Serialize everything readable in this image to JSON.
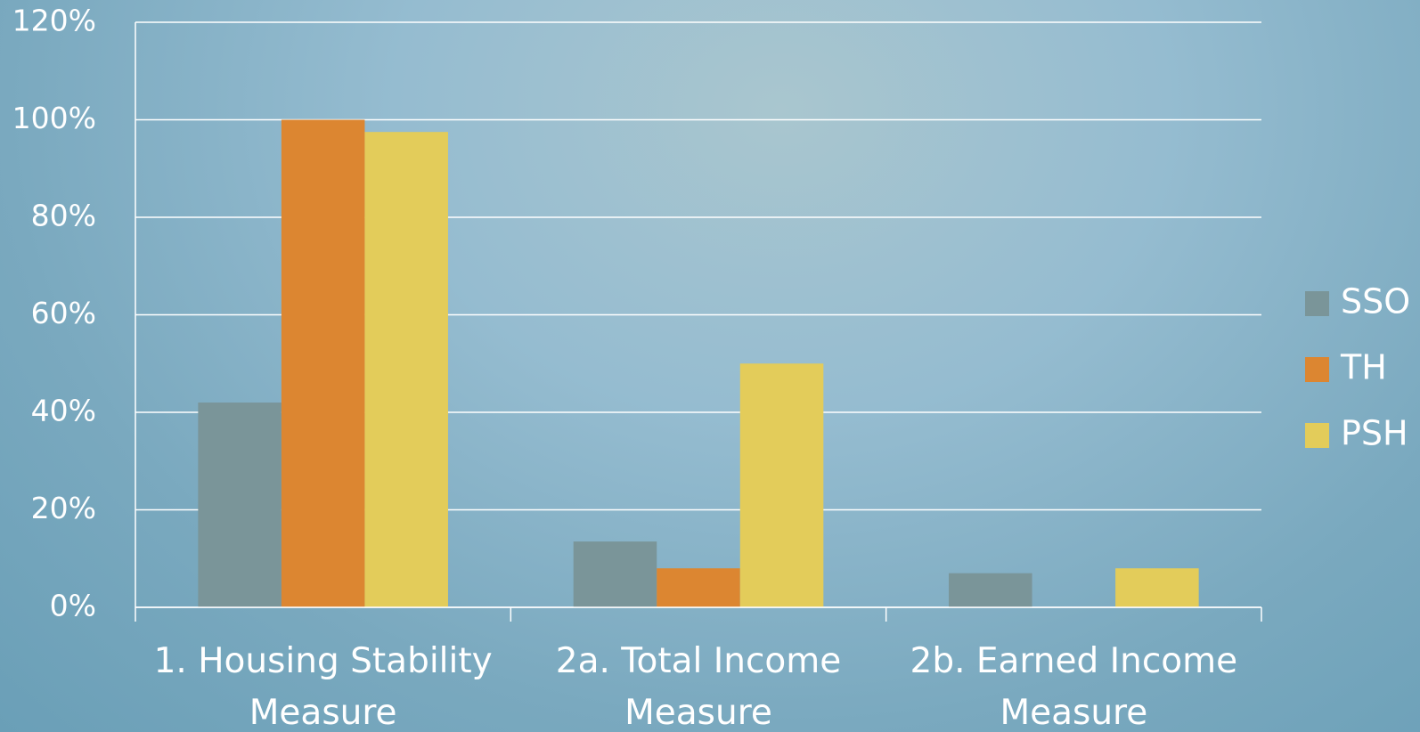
{
  "chart_data": {
    "type": "bar",
    "categories": [
      "1. Housing Stability Measure",
      "2a. Total Income Measure",
      "2b. Earned Income Measure"
    ],
    "series": [
      {
        "name": "SSO",
        "color": "#7a9599",
        "values": [
          42,
          13.5,
          7
        ]
      },
      {
        "name": "TH",
        "color": "#dc8631",
        "values": [
          100,
          8,
          0
        ]
      },
      {
        "name": "PSH",
        "color": "#e3cc5a",
        "values": [
          97.5,
          50,
          8
        ]
      }
    ],
    "ylim": [
      0,
      120
    ],
    "yticks": [
      {
        "value": 0,
        "label": "0%"
      },
      {
        "value": 20,
        "label": "20%"
      },
      {
        "value": 40,
        "label": "40%"
      },
      {
        "value": 60,
        "label": "60%"
      },
      {
        "value": 80,
        "label": "80%"
      },
      {
        "value": 100,
        "label": "100%"
      },
      {
        "value": 120,
        "label": "120%"
      }
    ],
    "grid": true,
    "legend": "right"
  }
}
